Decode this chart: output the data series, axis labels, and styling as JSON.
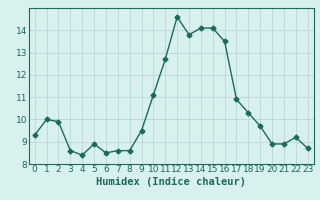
{
  "x": [
    0,
    1,
    2,
    3,
    4,
    5,
    6,
    7,
    8,
    9,
    10,
    11,
    12,
    13,
    14,
    15,
    16,
    17,
    18,
    19,
    20,
    21,
    22,
    23
  ],
  "y": [
    9.3,
    10.0,
    9.9,
    8.6,
    8.4,
    8.9,
    8.5,
    8.6,
    8.6,
    9.5,
    11.1,
    12.7,
    14.6,
    13.8,
    14.1,
    14.1,
    13.5,
    10.9,
    10.3,
    9.7,
    8.9,
    8.9,
    9.2,
    8.7
  ],
  "line_color": "#1a6b5a",
  "marker": "D",
  "markersize": 2.5,
  "linewidth": 1.0,
  "bg_color": "#d8f0ee",
  "grid_color": "#b8d8d4",
  "xlabel": "Humidex (Indice chaleur)",
  "xlabel_fontsize": 7.5,
  "tick_fontsize": 6.5,
  "ylim": [
    8,
    15
  ],
  "yticks": [
    8,
    9,
    10,
    11,
    12,
    13,
    14
  ],
  "xticks": [
    0,
    1,
    2,
    3,
    4,
    5,
    6,
    7,
    8,
    9,
    10,
    11,
    12,
    13,
    14,
    15,
    16,
    17,
    18,
    19,
    20,
    21,
    22,
    23
  ]
}
